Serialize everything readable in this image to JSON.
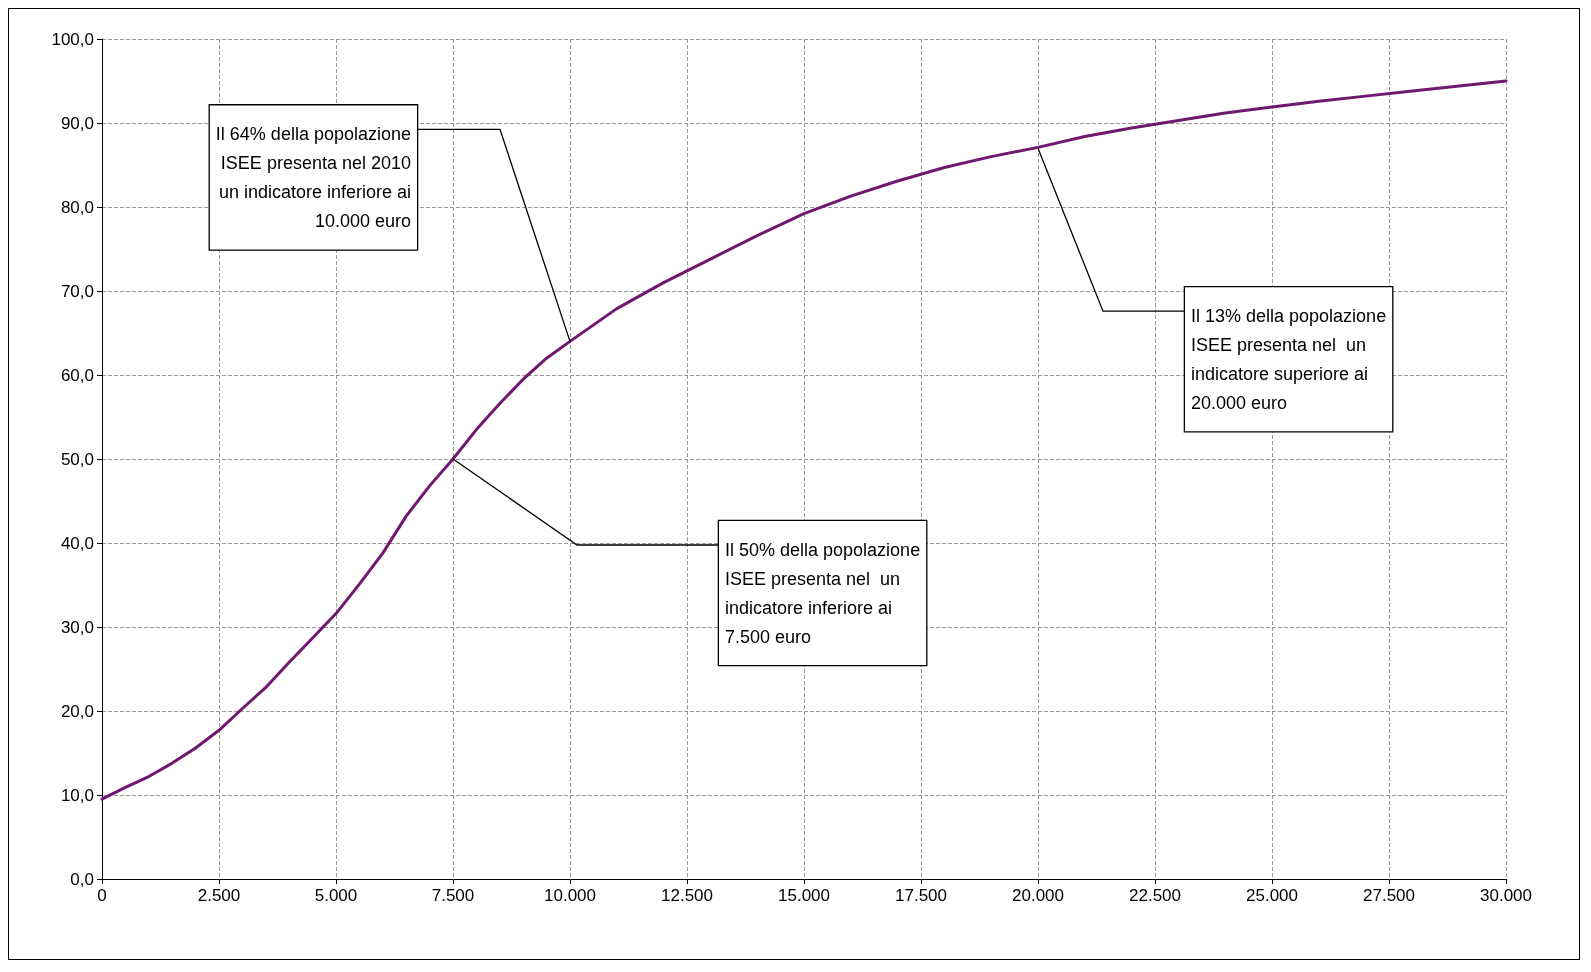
{
  "chart_data": {
    "type": "line",
    "x": [
      0,
      500,
      1000,
      1500,
      2000,
      2500,
      3000,
      3500,
      4000,
      4500,
      5000,
      5500,
      6000,
      6500,
      7000,
      7500,
      8000,
      8500,
      9000,
      9500,
      10000,
      11000,
      12000,
      13000,
      14000,
      15000,
      16000,
      17000,
      18000,
      19000,
      20000,
      21000,
      22000,
      23000,
      24000,
      25000,
      26000,
      27000,
      28000,
      29000,
      30000
    ],
    "series": [
      {
        "color": "#70186f",
        "values": [
          9.5,
          10.9,
          12.2,
          13.8,
          15.6,
          17.7,
          20.3,
          22.8,
          25.8,
          28.7,
          31.6,
          35.1,
          38.8,
          43.2,
          46.8,
          50.0,
          53.5,
          56.6,
          59.5,
          62.0,
          64.0,
          67.9,
          71.0,
          73.8,
          76.6,
          79.2,
          81.3,
          83.1,
          84.7,
          86.0,
          87.1,
          88.4,
          89.4,
          90.3,
          91.2,
          91.9,
          92.6,
          93.2,
          93.8,
          94.4,
          95.0
        ]
      }
    ],
    "xlim": [
      0,
      30000
    ],
    "ylim": [
      0,
      100
    ],
    "xticks": [
      0,
      {
        "value": 2500,
        "label": "2.500"
      },
      {
        "value": 5000,
        "label": "5.000"
      },
      {
        "value": 7500,
        "label": "7.500"
      },
      {
        "value": 10000,
        "label": "10.000"
      },
      {
        "value": 12500,
        "label": "12.500"
      },
      {
        "value": 15000,
        "label": "15.000"
      },
      {
        "value": 17500,
        "label": "17.500"
      },
      {
        "value": 20000,
        "label": "20.000"
      },
      {
        "value": 22500,
        "label": "22.500"
      },
      {
        "value": 25000,
        "label": "25.000"
      },
      {
        "value": 27500,
        "label": "27.500"
      },
      {
        "value": 30000,
        "label": "30.000"
      }
    ],
    "yticks": [
      {
        "value": 0,
        "label": "0,0"
      },
      {
        "value": 10,
        "label": "10,0"
      },
      {
        "value": 20,
        "label": "20,0"
      },
      {
        "value": 30,
        "label": "30,0"
      },
      {
        "value": 40,
        "label": "40,0"
      },
      {
        "value": 50,
        "label": "50,0"
      },
      {
        "value": 60,
        "label": "60,0"
      },
      {
        "value": 70,
        "label": "70,0"
      },
      {
        "value": 80,
        "label": "80,0"
      },
      {
        "value": 90,
        "label": "90,0"
      },
      {
        "value": 100,
        "label": "100,0"
      }
    ],
    "grid": true,
    "marker": "none",
    "line_style": "solid",
    "annotations": [
      {
        "text": "Il 64% della popolazione\nISEE presenta nel 2010\nun indicatore inferiore ai\n10.000 euro",
        "x": 10000,
        "y": 64
      },
      {
        "text": "Il 50% della popolazione\nISEE presenta nel  un\nindicatore inferiore ai\n7.500 euro",
        "x": 7500,
        "y": 50
      },
      {
        "text": "Il 13% della popolazione\nISEE presenta nel  un\nindicatore superiore ai\n20.000 euro",
        "x": 20000,
        "y": 87
      }
    ]
  }
}
